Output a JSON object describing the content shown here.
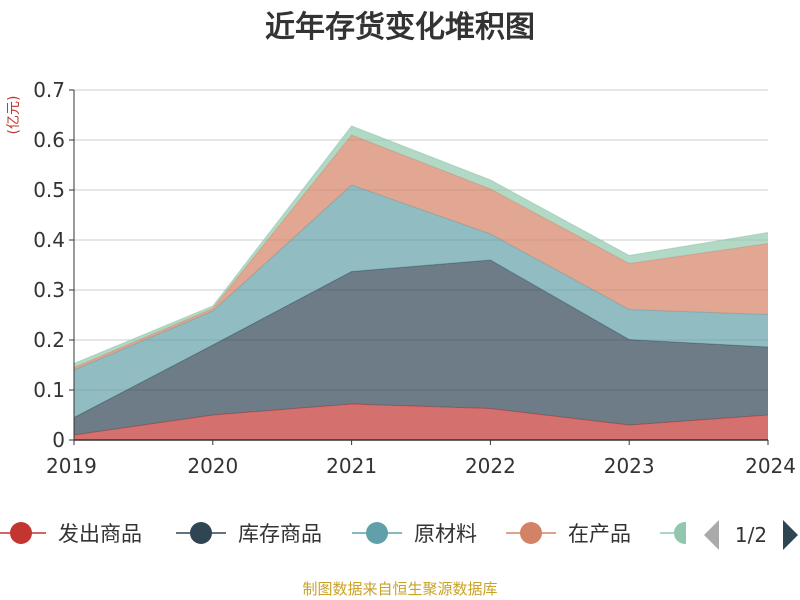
{
  "chart_data": {
    "type": "area",
    "stacked": true,
    "title": "近年存货变化堆积图",
    "ylabel": "(亿元)",
    "ylim": [
      0,
      0.7
    ],
    "yticks": [
      "0",
      "0.1",
      "0.2",
      "0.3",
      "0.4",
      "0.5",
      "0.6",
      "0.7"
    ],
    "categories": [
      "2019",
      "2020",
      "2021",
      "2022",
      "2023",
      "2024"
    ],
    "grid": true,
    "legend_position": "bottom",
    "series": [
      {
        "name": "发出商品",
        "color": "#c23531",
        "values": [
          0.01,
          0.05,
          0.072,
          0.063,
          0.03,
          0.05
        ]
      },
      {
        "name": "库存商品",
        "color": "#2f4554",
        "values": [
          0.035,
          0.14,
          0.265,
          0.297,
          0.171,
          0.136
        ]
      },
      {
        "name": "原材料",
        "color": "#61a0a8",
        "values": [
          0.095,
          0.068,
          0.173,
          0.052,
          0.06,
          0.065
        ]
      },
      {
        "name": "在产品",
        "color": "#d48265",
        "values": [
          0.005,
          0.005,
          0.1,
          0.09,
          0.092,
          0.142
        ]
      },
      {
        "name": "",
        "color": "#91c7ae",
        "values": [
          0.008,
          0.005,
          0.018,
          0.018,
          0.016,
          0.022
        ]
      }
    ],
    "legend_pager": "1/2"
  },
  "source_text": "制图数据来自恒生聚源数据库"
}
